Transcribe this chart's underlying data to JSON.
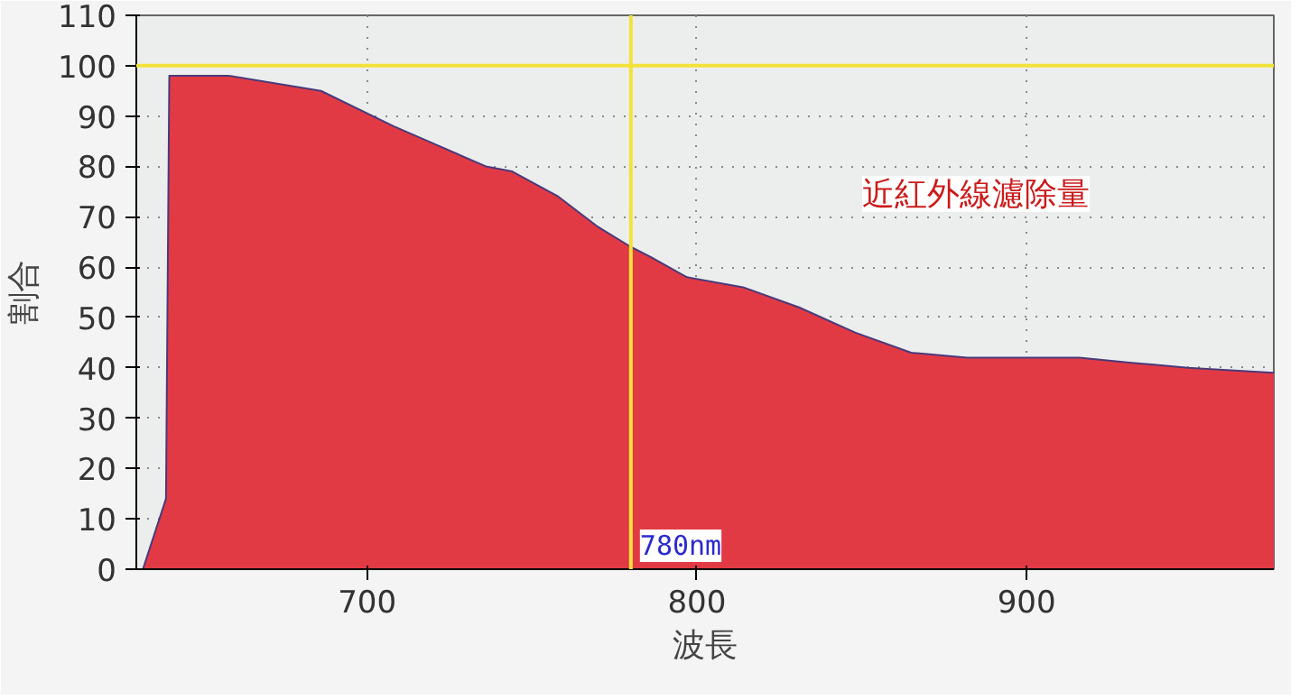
{
  "chart_data": {
    "type": "area",
    "xlabel": "波長",
    "ylabel": "割合",
    "x": [
      632,
      639,
      640,
      658,
      686,
      708,
      722,
      736,
      744,
      758,
      770,
      780,
      786,
      797,
      814,
      831,
      848,
      865,
      882,
      899,
      916,
      932,
      949,
      975
    ],
    "series": [
      {
        "color": "#e23a45",
        "values": [
          0,
          14,
          98,
          98,
          95,
          88,
          84,
          80,
          79,
          74,
          68,
          64,
          62,
          58,
          56,
          52,
          47,
          43,
          42,
          42,
          42,
          41,
          40,
          39
        ]
      }
    ],
    "xlim": [
      630,
      975
    ],
    "xticks": [
      700,
      800,
      900
    ],
    "ylim": [
      0,
      110
    ],
    "yticks": [
      0,
      10,
      20,
      30,
      40,
      50,
      60,
      70,
      80,
      90,
      100,
      110
    ],
    "grid": true,
    "ref_lines": [
      {
        "axis": "y",
        "value": 100,
        "color": "#f2e23a"
      },
      {
        "axis": "x",
        "value": 780,
        "label": "780nm",
        "color": "#f2e23a"
      }
    ],
    "annotations": [
      "近紅外線濾除量"
    ]
  }
}
